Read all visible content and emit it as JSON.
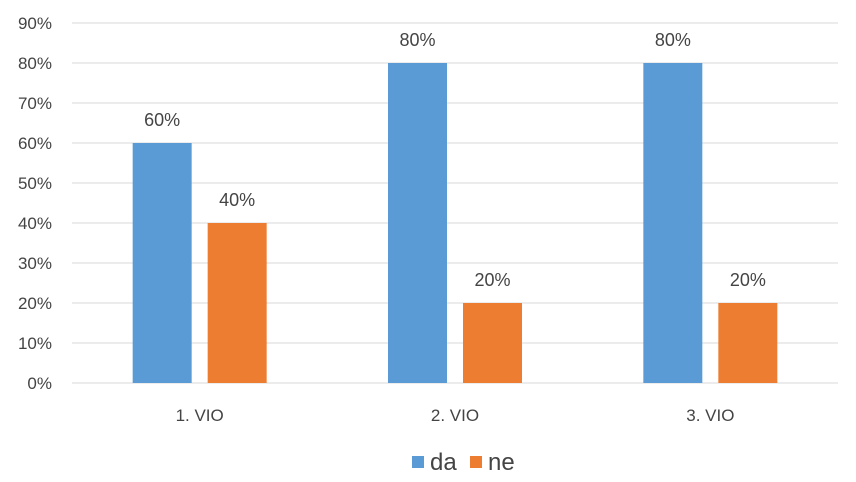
{
  "chart_data": {
    "type": "bar",
    "title": "",
    "xlabel": "",
    "ylabel": "",
    "categories": [
      "1. VIO",
      "2. VIO",
      "3. VIO"
    ],
    "series": [
      {
        "name": "da",
        "color": "#5B9BD5",
        "values": [
          60,
          80,
          80
        ],
        "labels": [
          "60%",
          "80%",
          "80%"
        ]
      },
      {
        "name": "ne",
        "color": "#ED7D31",
        "values": [
          40,
          20,
          20
        ],
        "labels": [
          "40%",
          "20%",
          "20%"
        ]
      }
    ],
    "ylim": [
      0,
      90
    ],
    "yticks": [
      0,
      10,
      20,
      30,
      40,
      50,
      60,
      70,
      80,
      90
    ],
    "ytick_labels": [
      "0%",
      "10%",
      "20%",
      "30%",
      "40%",
      "50%",
      "60%",
      "70%",
      "80%",
      "90%"
    ],
    "grid": true,
    "gridline_color": "#D9D9D9",
    "legend_position": "bottom"
  }
}
